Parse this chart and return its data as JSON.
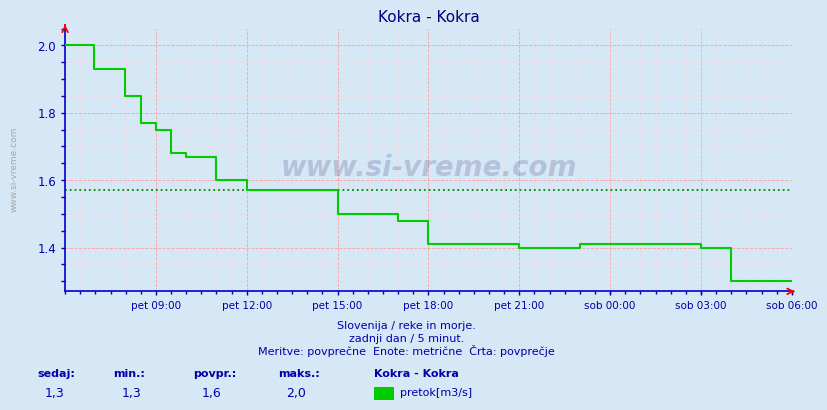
{
  "title": "Kokra - Kokra",
  "title_color": "#000080",
  "bg_color": "#d6e8f5",
  "plot_bg_color": "#d6e8f5",
  "grid_major_color": "#ff9999",
  "grid_minor_color": "#ffcccc",
  "line_color": "#00cc00",
  "avg_line_color": "#008800",
  "avg_value": 1.57,
  "axis_color_left_bottom": "#0000cc",
  "axis_color_right_top": "#ff0000",
  "tick_color": "#0000aa",
  "ylim": [
    1.27,
    2.05
  ],
  "yticks": [
    1.4,
    1.6,
    1.8,
    2.0
  ],
  "text_color": "#0000aa",
  "footnote1": "Slovenija / reke in morje.",
  "footnote2": "zadnji dan / 5 minut.",
  "footnote3": "Meritve: povprečne  Enote: metrične  Črta: povprečje",
  "legend_title": "Kokra - Kokra",
  "legend_label": "pretok[m3/s]",
  "legend_color": "#00cc00",
  "stat_labels": [
    "sedaj:",
    "min.:",
    "povpr.:",
    "maks.:"
  ],
  "stat_values": [
    "1,3",
    "1,3",
    "1,6",
    "2,0"
  ],
  "watermark": "www.si-vreme.com",
  "x_tick_labels": [
    "pet 09:00",
    "pet 12:00",
    "pet 15:00",
    "pet 18:00",
    "pet 21:00",
    "sob 00:00",
    "sob 03:00",
    "sob 06:00"
  ],
  "x_tick_positions": [
    0.125,
    0.25,
    0.375,
    0.5,
    0.625,
    0.75,
    0.875,
    1.0
  ],
  "step_x": [
    0.0,
    0.04,
    0.04,
    0.083,
    0.083,
    0.104,
    0.104,
    0.125,
    0.125,
    0.146,
    0.146,
    0.167,
    0.167,
    0.208,
    0.208,
    0.25,
    0.25,
    0.375,
    0.375,
    0.458,
    0.458,
    0.5,
    0.5,
    0.583,
    0.583,
    0.625,
    0.625,
    0.708,
    0.708,
    0.875,
    0.875,
    0.917,
    0.917,
    1.0
  ],
  "step_y": [
    2.0,
    2.0,
    1.93,
    1.93,
    1.85,
    1.85,
    1.77,
    1.77,
    1.75,
    1.75,
    1.68,
    1.68,
    1.67,
    1.67,
    1.6,
    1.6,
    1.57,
    1.57,
    1.5,
    1.5,
    1.48,
    1.48,
    1.41,
    1.41,
    1.41,
    1.41,
    1.4,
    1.4,
    1.41,
    1.41,
    1.4,
    1.4,
    1.3,
    1.3
  ]
}
